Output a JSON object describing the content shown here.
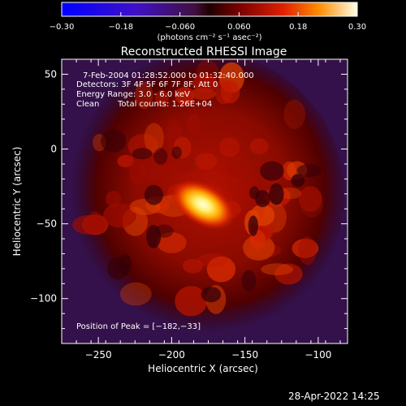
{
  "chart_data": {
    "type": "heatmap",
    "title": "Reconstructed RHESSI Image",
    "xlabel": "Heliocentric X (arcsec)",
    "ylabel": "Heliocentric Y (arcsec)",
    "xlim": [
      -275,
      -80
    ],
    "ylim": [
      -130,
      60
    ],
    "xticks": [
      -250,
      -200,
      -150,
      -100
    ],
    "yticks": [
      50,
      0,
      -50,
      -100
    ],
    "xtick_labels": [
      "−250",
      "−200",
      "−150",
      "−100"
    ],
    "ytick_labels": [
      "50",
      "0",
      "−50",
      "−100"
    ],
    "colorbar": {
      "range": [
        -0.3,
        0.3
      ],
      "ticks": [
        -0.3,
        -0.18,
        -0.06,
        0.06,
        0.18,
        0.3
      ],
      "tick_labels": [
        "−0.30",
        "−0.18",
        "−0.060",
        "0.060",
        "0.18",
        "0.30"
      ],
      "unit_label": "(photons cm⁻² s⁻¹ asec⁻²)"
    },
    "peak_position": [
      -182,
      -33
    ],
    "annotations": {
      "time": "7-Feb-2004 01:28:52.000 to 01:32:40.000",
      "detectors": "Detectors: 3F 4F 5F 6F 7F 8F, Att 0",
      "energy": "Energy Range: 3.0 - 6.0 keV",
      "clean": "Clean",
      "total_counts": "Total counts: 1.26E+04",
      "peak": "Position of Peak = [−182,−33]"
    }
  },
  "footer": {
    "timestamp": "28-Apr-2022 14:25"
  }
}
